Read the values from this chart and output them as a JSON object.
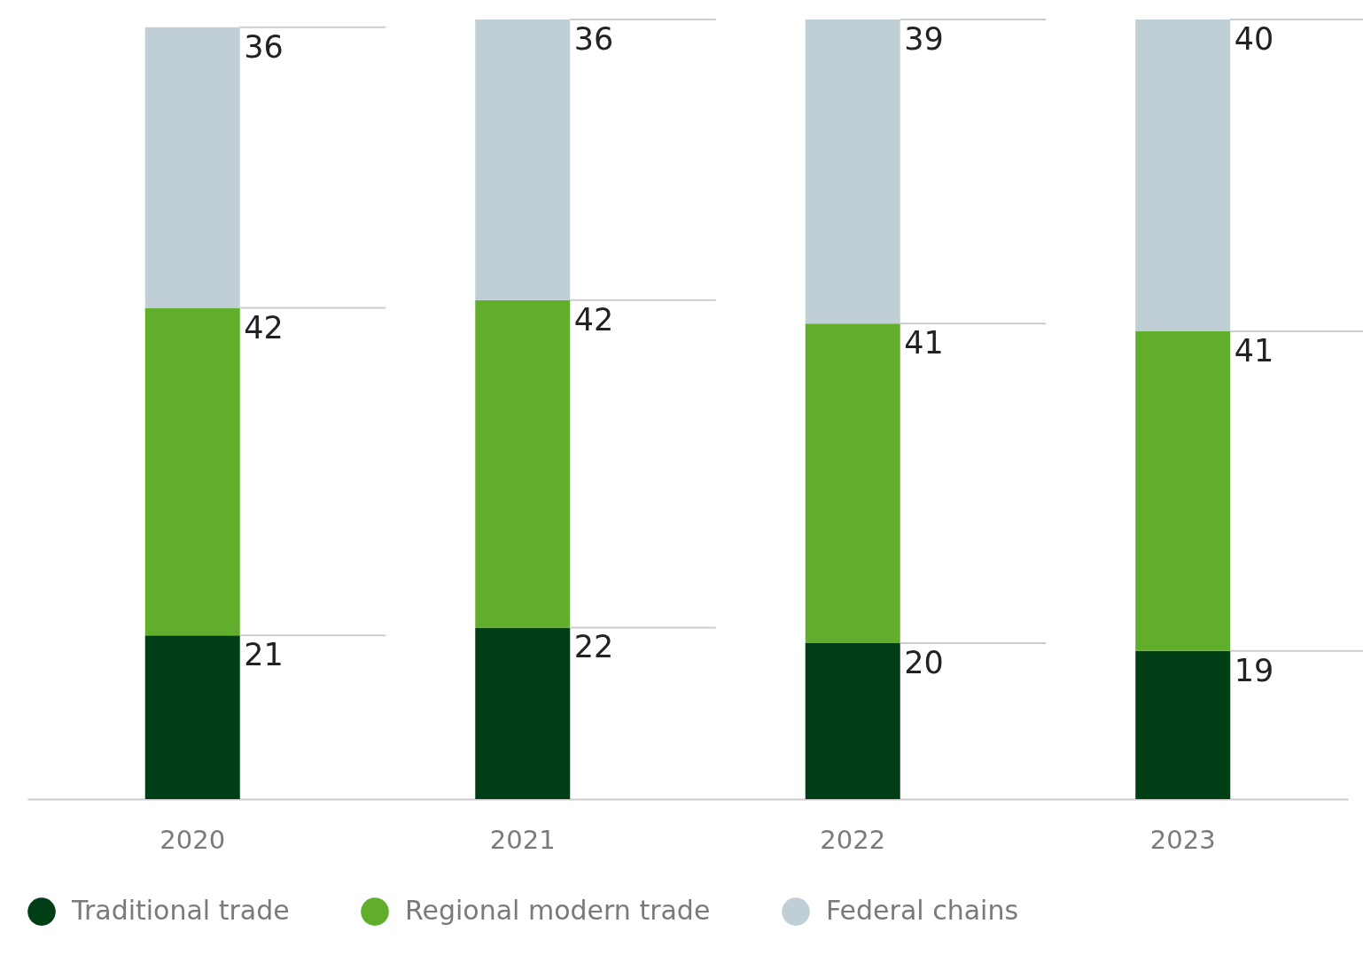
{
  "chart_data": {
    "type": "bar",
    "stacked": true,
    "data_labels": true,
    "grid": false,
    "legend": "bottom",
    "categories": [
      "2020",
      "2021",
      "2022",
      "2023"
    ],
    "series": [
      {
        "name": "Traditional trade",
        "color": "#003f15",
        "values": [
          21,
          22,
          20,
          19
        ]
      },
      {
        "name": "Regional modern trade",
        "color": "#60ae2c",
        "values": [
          42,
          42,
          41,
          41
        ]
      },
      {
        "name": "Federal chains",
        "color": "#c0cfd6",
        "values": [
          36,
          36,
          39,
          40
        ]
      }
    ]
  }
}
